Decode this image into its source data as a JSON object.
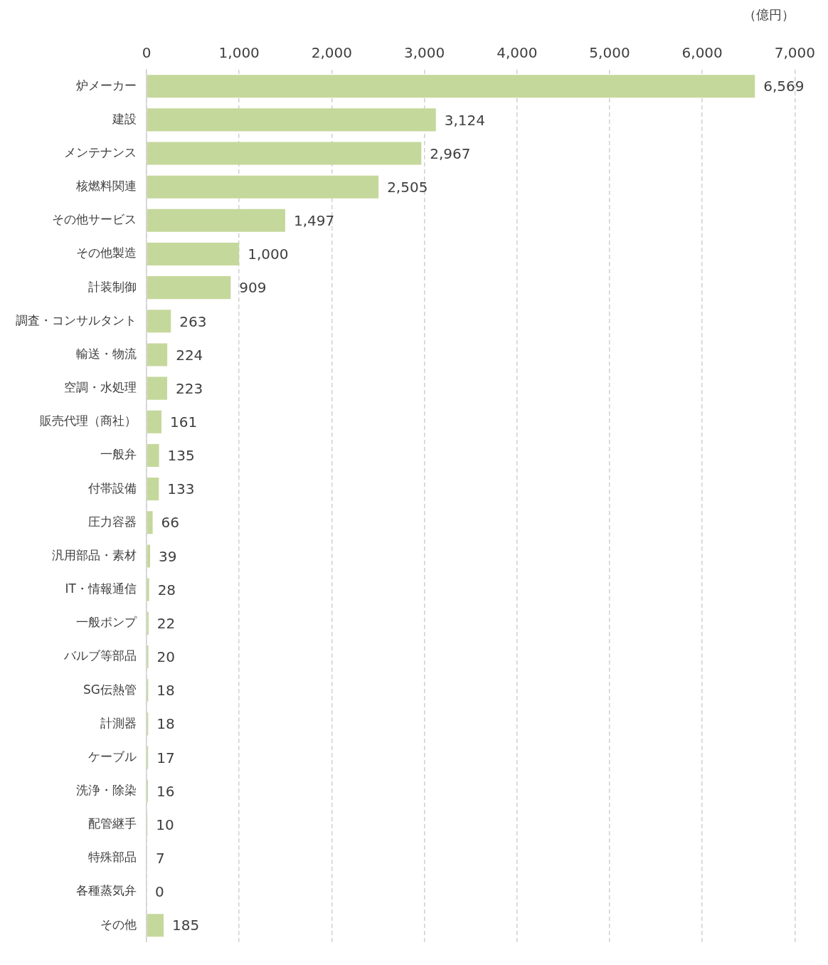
{
  "chart_data": {
    "type": "bar",
    "orientation": "horizontal",
    "xlabel": "（億円）",
    "categories": [
      "炉メーカー",
      "建設",
      "メンテナンス",
      "核燃料関連",
      "その他サービス",
      "その他製造",
      "計装制御",
      "調査・コンサルタント",
      "輸送・物流",
      "空調・水処理",
      "販売代理（商社）",
      "一般弁",
      "付帯設備",
      "圧力容器",
      "汎用部品・素材",
      "IT・情報通信",
      "一般ポンプ",
      "バルブ等部品",
      "SG伝熱管",
      "計測器",
      "ケーブル",
      "洗浄・除染",
      "配管継手",
      "特殊部品",
      "各種蒸気弁",
      "その他"
    ],
    "values": [
      6569,
      3124,
      2967,
      2505,
      1497,
      1000,
      909,
      263,
      224,
      223,
      161,
      135,
      133,
      66,
      39,
      28,
      22,
      20,
      18,
      18,
      17,
      16,
      10,
      7,
      0,
      185
    ],
    "value_labels": [
      "6,569",
      "3,124",
      "2,967",
      "2,505",
      "1,497",
      "1,000",
      "909",
      "263",
      "224",
      "223",
      "161",
      "135",
      "133",
      "66",
      "39",
      "28",
      "22",
      "20",
      "18",
      "18",
      "17",
      "16",
      "10",
      "7",
      "0",
      "185"
    ],
    "color": "#c5d89b",
    "xlim": [
      0,
      7000
    ],
    "xticks": [
      0,
      {
        "value": 1000,
        "label": "1,000"
      },
      {
        "value": 2000,
        "label": "2,000"
      },
      {
        "value": 3000,
        "label": "3,000"
      },
      {
        "value": 4000,
        "label": "4,000"
      },
      {
        "value": 5000,
        "label": "5,000"
      },
      {
        "value": 6000,
        "label": "6,000"
      },
      {
        "value": 7000,
        "label": "7,000"
      }
    ],
    "grid": "x",
    "legend": false
  }
}
